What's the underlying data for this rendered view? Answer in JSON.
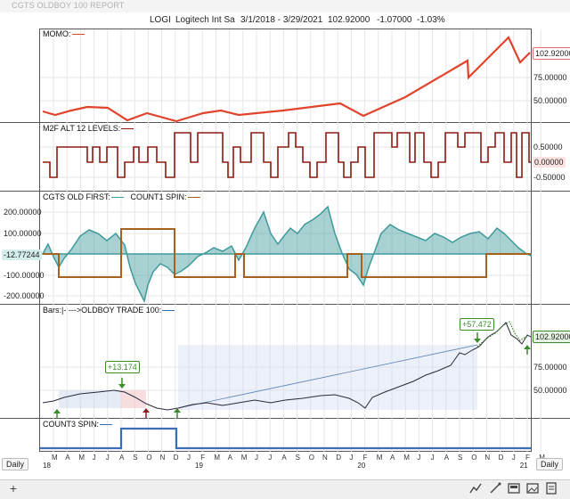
{
  "window": {
    "title": "CGTS OLDBOY 100  REPORT"
  },
  "header": {
    "symbol": "LOGI",
    "name": "Logitech Int Sa",
    "range": "3/1/2018 - 3/29/2021",
    "price": "102.92000",
    "change": "-1.07000",
    "change_pct": "-1.03%"
  },
  "panels": {
    "momo": {
      "title": "MOMO:",
      "last": "102.92000",
      "ticks": [
        "75.00000",
        "50.00000"
      ]
    },
    "m2f": {
      "title": "M2F ALT 12 LEVELS:",
      "last": "0.00000",
      "ticks": [
        "0.50000",
        "-0.50000"
      ]
    },
    "cgts": {
      "title_a": "CGTS OLD FIRST:",
      "title_b": "COUNT1 SPIN:",
      "last": "-12.77244",
      "ticks": [
        "200.00000",
        "100.00000",
        "-100.00000",
        "-200.00000"
      ]
    },
    "bars": {
      "title": "Bars:|-   --->OLDBOY TRADE 100:",
      "last": "102.92000",
      "ticks": [
        "75.00000",
        "50.00000"
      ],
      "trade1": "+13.174",
      "trade2": "+57.472"
    },
    "count3": {
      "title": "COUNT3 SPIN:"
    }
  },
  "xaxis": {
    "months": [
      "M",
      "A",
      "M",
      "J",
      "J",
      "A",
      "S",
      "O",
      "N",
      "D",
      "J",
      "F",
      "M",
      "A",
      "M",
      "J",
      "J",
      "A",
      "S",
      "O",
      "N",
      "D",
      "J",
      "F",
      "M",
      "A",
      "M",
      "J",
      "J",
      "A",
      "S",
      "O",
      "N",
      "D",
      "J",
      "F",
      "M"
    ],
    "years": [
      "18",
      "19",
      "20",
      "21"
    ]
  },
  "bottom": {
    "period_left": "Daily",
    "period_right": "Daily"
  },
  "toolbar": {
    "add": "+"
  },
  "colors": {
    "momo": "#e0442c",
    "m2f": "#8b1a10",
    "cgts_fill": "#3f9a9c",
    "count": "#a7611e",
    "bars_line": "#2a2a3a",
    "count3": "#3a6fb8",
    "trade_green": "#3d8b2d",
    "trade_red": "#8b2020",
    "label_box": "#f26b6b"
  }
}
